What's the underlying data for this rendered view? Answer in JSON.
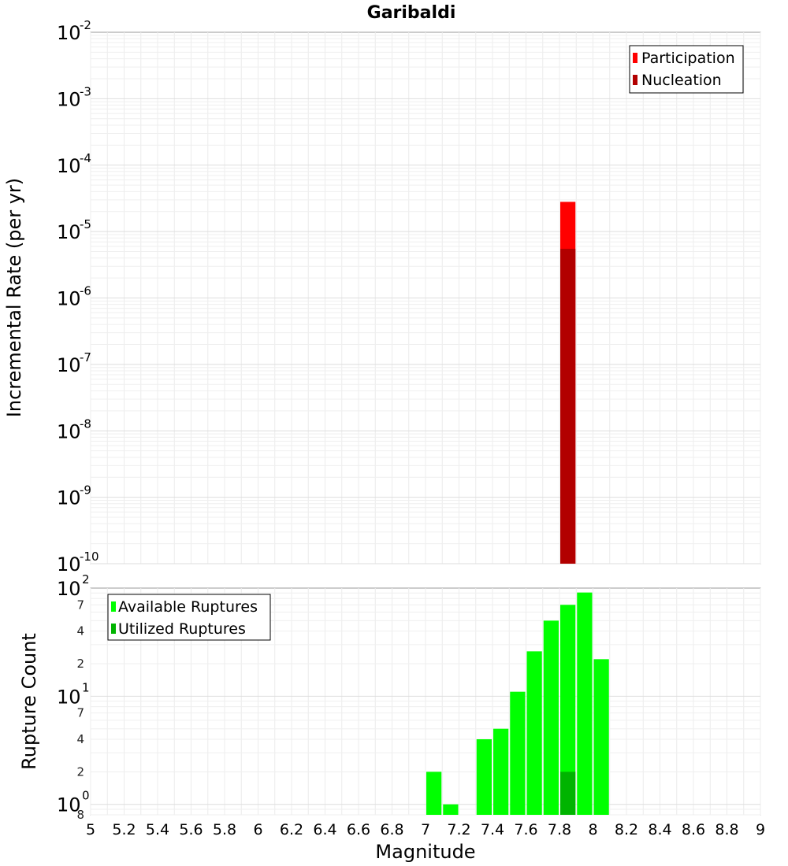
{
  "chart_data": [
    {
      "type": "bar",
      "title": "Garibaldi",
      "xlabel": "",
      "ylabel": "Incremental Rate (per yr)",
      "yscale": "log",
      "ylim": [
        1e-10,
        0.01
      ],
      "xlim": [
        5,
        9
      ],
      "bar_width": 0.1,
      "y_tick_labels": [
        {
          "base": "10",
          "exp": "-10"
        },
        {
          "base": "10",
          "exp": "-9"
        },
        {
          "base": "10",
          "exp": "-8"
        },
        {
          "base": "10",
          "exp": "-7"
        },
        {
          "base": "10",
          "exp": "-6"
        },
        {
          "base": "10",
          "exp": "-5"
        },
        {
          "base": "10",
          "exp": "-4"
        },
        {
          "base": "10",
          "exp": "-3"
        },
        {
          "base": "10",
          "exp": "-2"
        }
      ],
      "legend_position": "top-right",
      "series": [
        {
          "name": "Participation",
          "color": "#ff0000",
          "x": [
            7.85
          ],
          "values": [
            2.8e-05
          ]
        },
        {
          "name": "Nucleation",
          "color": "#b20000",
          "x": [
            7.85
          ],
          "values": [
            5.5e-06
          ]
        }
      ]
    },
    {
      "type": "bar",
      "title": "",
      "xlabel": "Magnitude",
      "ylabel": "Rupture Count",
      "yscale": "log",
      "ylim": [
        0.8,
        100
      ],
      "xlim": [
        5,
        9
      ],
      "bar_width": 0.1,
      "x_tick_labels": [
        "5",
        "5.2",
        "5.4",
        "5.6",
        "5.8",
        "6",
        "6.2",
        "6.4",
        "6.6",
        "6.8",
        "7",
        "7.2",
        "7.4",
        "7.6",
        "7.8",
        "8",
        "8.2",
        "8.4",
        "8.6",
        "8.8",
        "9"
      ],
      "y_tick_labels": [
        {
          "base": "10",
          "exp": "2"
        },
        {
          "base": "10",
          "exp": "1"
        },
        {
          "base": "10",
          "exp": "0"
        }
      ],
      "y_minor_labels": [
        "7",
        "4",
        "2",
        "7",
        "4",
        "2",
        "8"
      ],
      "legend_position": "top-left",
      "series": [
        {
          "name": "Available Ruptures",
          "color": "#00ff00",
          "x": [
            7.05,
            7.15,
            7.35,
            7.45,
            7.55,
            7.65,
            7.75,
            7.85,
            7.95,
            8.05
          ],
          "values": [
            2,
            1,
            4,
            5,
            11,
            26,
            50,
            70,
            91,
            22
          ]
        },
        {
          "name": "Utilized Ruptures",
          "color": "#00b400",
          "x": [
            7.85
          ],
          "values": [
            2
          ]
        }
      ]
    }
  ]
}
